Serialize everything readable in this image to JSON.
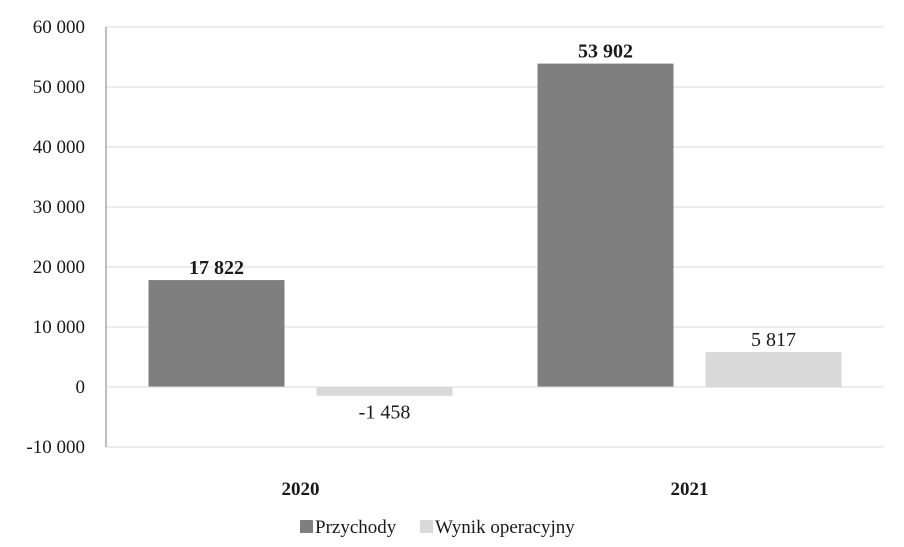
{
  "chart_data": {
    "type": "bar",
    "categories": [
      "2020",
      "2021"
    ],
    "series": [
      {
        "name": "Przychody",
        "values": [
          17822,
          53902
        ],
        "labels": [
          "17 822",
          "53 902"
        ],
        "color": "#7f7f7f",
        "label_bold": true
      },
      {
        "name": "Wynik operacyjny",
        "values": [
          -1458,
          5817
        ],
        "labels": [
          "-1 458",
          "5 817"
        ],
        "color": "#d9d9d9",
        "label_bold": false
      }
    ],
    "ylim": [
      -10000,
      60000
    ],
    "yticks": [
      60000,
      50000,
      40000,
      30000,
      20000,
      10000,
      0,
      -10000
    ],
    "ytick_labels": [
      "60 000",
      "50 000",
      "40 000",
      "30 000",
      "20 000",
      "10 000",
      "0",
      "-10 000"
    ],
    "grid": true,
    "legend_position": "bottom",
    "gridline_color": "#d9d9d9"
  }
}
